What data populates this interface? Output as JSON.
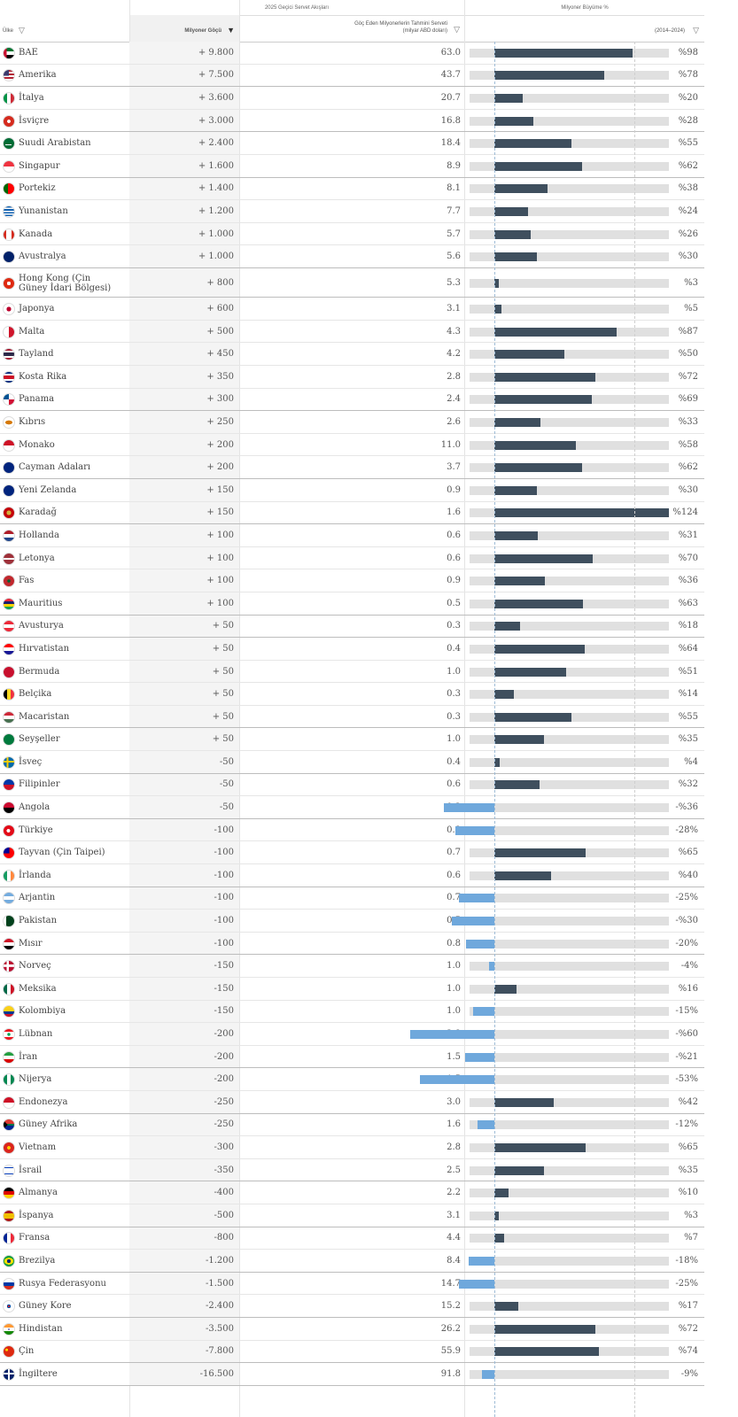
{
  "header": {
    "group1": "2025 Geçici Servet Akışları",
    "group2": "Milyoner Büyüme %",
    "col_country": "Ülke",
    "col_flow": "Milyoner Göçü",
    "col_wealth_l1": "Göç Eden Milyonerlerin Tahmini Serveti",
    "col_wealth_l2": "(milyar ABD doları)",
    "col_growth": "(2014–2024)"
  },
  "colors": {
    "positive": "#3f4f5e",
    "negative": "#6fa8dc",
    "track": "#e0e0e0"
  },
  "chart_data": {
    "type": "table",
    "growth_axis": [
      -125,
      125
    ],
    "rows": [
      {
        "country": "BAE",
        "flow": "+ 9.800",
        "wealth": "63.0",
        "growth": 98,
        "growth_label": "%98",
        "flag": "ae"
      },
      {
        "country": "Amerika",
        "flow": "+ 7.500",
        "wealth": "43.7",
        "growth": 78,
        "growth_label": "%78",
        "flag": "us"
      },
      {
        "country": "İtalya",
        "flow": "+ 3.600",
        "wealth": "20.7",
        "growth": 20,
        "growth_label": "%20",
        "flag": "it"
      },
      {
        "country": "İsviçre",
        "flow": "+ 3.000",
        "wealth": "16.8",
        "growth": 28,
        "growth_label": "%28",
        "flag": "ch"
      },
      {
        "country": "Suudi Arabistan",
        "flow": "+ 2.400",
        "wealth": "18.4",
        "growth": 55,
        "growth_label": "%55",
        "flag": "sa"
      },
      {
        "country": "Singapur",
        "flow": "+ 1.600",
        "wealth": "8.9",
        "growth": 62,
        "growth_label": "%62",
        "flag": "sg"
      },
      {
        "country": "Portekiz",
        "flow": "+ 1.400",
        "wealth": "8.1",
        "growth": 38,
        "growth_label": "%38",
        "flag": "pt"
      },
      {
        "country": "Yunanistan",
        "flow": "+ 1.200",
        "wealth": "7.7",
        "growth": 24,
        "growth_label": "%24",
        "flag": "gr"
      },
      {
        "country": "Kanada",
        "flow": "+ 1.000",
        "wealth": "5.7",
        "growth": 26,
        "growth_label": "%26",
        "flag": "ca"
      },
      {
        "country": "Avustralya",
        "flow": "+ 1.000",
        "wealth": "5.6",
        "growth": 30,
        "growth_label": "%30",
        "flag": "au"
      },
      {
        "country": "Hong Kong (Çin Güney İdari Bölgesi)",
        "flow": "+ 800",
        "wealth": "5.3",
        "growth": 3,
        "growth_label": "%3",
        "flag": "hk"
      },
      {
        "country": "Japonya",
        "flow": "+ 600",
        "wealth": "3.1",
        "growth": 5,
        "growth_label": "%5",
        "flag": "jp"
      },
      {
        "country": "Malta",
        "flow": "+ 500",
        "wealth": "4.3",
        "growth": 87,
        "growth_label": "%87",
        "flag": "mt"
      },
      {
        "country": "Tayland",
        "flow": "+ 450",
        "wealth": "4.2",
        "growth": 50,
        "growth_label": "%50",
        "flag": "th"
      },
      {
        "country": "Kosta Rika",
        "flow": "+ 350",
        "wealth": "2.8",
        "growth": 72,
        "growth_label": "%72",
        "flag": "cr"
      },
      {
        "country": "Panama",
        "flow": "+ 300",
        "wealth": "2.4",
        "growth": 69,
        "growth_label": "%69",
        "flag": "pa"
      },
      {
        "country": "Kıbrıs",
        "flow": "+ 250",
        "wealth": "2.6",
        "growth": 33,
        "growth_label": "%33",
        "flag": "cy"
      },
      {
        "country": "Monako",
        "flow": "+ 200",
        "wealth": "11.0",
        "growth": 58,
        "growth_label": "%58",
        "flag": "mc"
      },
      {
        "country": "Cayman Adaları",
        "flow": "+ 200",
        "wealth": "3.7",
        "growth": 62,
        "growth_label": "%62",
        "flag": "ky"
      },
      {
        "country": "Yeni Zelanda",
        "flow": "+ 150",
        "wealth": "0.9",
        "growth": 30,
        "growth_label": "%30",
        "flag": "nz"
      },
      {
        "country": "Karadağ",
        "flow": "+ 150",
        "wealth": "1.6",
        "growth": 124,
        "growth_label": "%124",
        "flag": "me"
      },
      {
        "country": "Hollanda",
        "flow": "+ 100",
        "wealth": "0.6",
        "growth": 31,
        "growth_label": "%31",
        "flag": "nl"
      },
      {
        "country": "Letonya",
        "flow": "+ 100",
        "wealth": "0.6",
        "growth": 70,
        "growth_label": "%70",
        "flag": "lv"
      },
      {
        "country": "Fas",
        "flow": "+ 100",
        "wealth": "0.9",
        "growth": 36,
        "growth_label": "%36",
        "flag": "ma"
      },
      {
        "country": "Mauritius",
        "flow": "+ 100",
        "wealth": "0.5",
        "growth": 63,
        "growth_label": "%63",
        "flag": "mu"
      },
      {
        "country": "Avusturya",
        "flow": "+ 50",
        "wealth": "0.3",
        "growth": 18,
        "growth_label": "%18",
        "flag": "at"
      },
      {
        "country": "Hırvatistan",
        "flow": "+ 50",
        "wealth": "0.4",
        "growth": 64,
        "growth_label": "%64",
        "flag": "hr"
      },
      {
        "country": "Bermuda",
        "flow": "+ 50",
        "wealth": "1.0",
        "growth": 51,
        "growth_label": "%51",
        "flag": "bm"
      },
      {
        "country": "Belçika",
        "flow": "+ 50",
        "wealth": "0.3",
        "growth": 14,
        "growth_label": "%14",
        "flag": "be"
      },
      {
        "country": "Macaristan",
        "flow": "+ 50",
        "wealth": "0.3",
        "growth": 55,
        "growth_label": "%55",
        "flag": "hu"
      },
      {
        "country": "Seyşeller",
        "flow": "+ 50",
        "wealth": "1.0",
        "growth": 35,
        "growth_label": "%35",
        "flag": "sc"
      },
      {
        "country": "İsveç",
        "flow": "-50",
        "wealth": "0.4",
        "growth": 4,
        "growth_label": "%4",
        "flag": "se"
      },
      {
        "country": "Filipinler",
        "flow": "-50",
        "wealth": "0.6",
        "growth": 32,
        "growth_label": "%32",
        "flag": "ph"
      },
      {
        "country": "Angola",
        "flow": "-50",
        "wealth": "0.3",
        "growth": -36,
        "growth_label": "-%36",
        "flag": "ao"
      },
      {
        "country": "Türkiye",
        "flow": "-100",
        "wealth": "0.8",
        "growth": -28,
        "growth_label": "-28%",
        "flag": "tr"
      },
      {
        "country": "Tayvan (Çin Taipei)",
        "flow": "-100",
        "wealth": "0.7",
        "growth": 65,
        "growth_label": "%65",
        "flag": "tw"
      },
      {
        "country": "İrlanda",
        "flow": "-100",
        "wealth": "0.6",
        "growth": 40,
        "growth_label": "%40",
        "flag": "ie"
      },
      {
        "country": "Arjantin",
        "flow": "-100",
        "wealth": "0.7",
        "growth": -25,
        "growth_label": "-25%",
        "flag": "ar"
      },
      {
        "country": "Pakistan",
        "flow": "-100",
        "wealth": "0.5",
        "growth": -30,
        "growth_label": "-%30",
        "flag": "pk"
      },
      {
        "country": "Mısır",
        "flow": "-100",
        "wealth": "0.8",
        "growth": -20,
        "growth_label": "-20%",
        "flag": "eg"
      },
      {
        "country": "Norveç",
        "flow": "-150",
        "wealth": "1.0",
        "growth": -4,
        "growth_label": "-4%",
        "flag": "no"
      },
      {
        "country": "Meksika",
        "flow": "-150",
        "wealth": "1.0",
        "growth": 16,
        "growth_label": "%16",
        "flag": "mx"
      },
      {
        "country": "Kolombiya",
        "flow": "-150",
        "wealth": "1.0",
        "growth": -15,
        "growth_label": "-15%",
        "flag": "co"
      },
      {
        "country": "Lübnan",
        "flow": "-200",
        "wealth": "2.8",
        "growth": -60,
        "growth_label": "-%60",
        "flag": "lb"
      },
      {
        "country": "İran",
        "flow": "-200",
        "wealth": "1.5",
        "growth": -21,
        "growth_label": "-%21",
        "flag": "ir"
      },
      {
        "country": "Nijerya",
        "flow": "-200",
        "wealth": "1.5",
        "growth": -53,
        "growth_label": "-53%",
        "flag": "ng"
      },
      {
        "country": "Endonezya",
        "flow": "-250",
        "wealth": "3.0",
        "growth": 42,
        "growth_label": "%42",
        "flag": "id"
      },
      {
        "country": "Güney Afrika",
        "flow": "-250",
        "wealth": "1.6",
        "growth": -12,
        "growth_label": "-12%",
        "flag": "za"
      },
      {
        "country": "Vietnam",
        "flow": "-300",
        "wealth": "2.8",
        "growth": 65,
        "growth_label": "%65",
        "flag": "vn"
      },
      {
        "country": "İsrail",
        "flow": "-350",
        "wealth": "2.5",
        "growth": 35,
        "growth_label": "%35",
        "flag": "il"
      },
      {
        "country": "Almanya",
        "flow": "-400",
        "wealth": "2.2",
        "growth": 10,
        "growth_label": "%10",
        "flag": "de"
      },
      {
        "country": "İspanya",
        "flow": "-500",
        "wealth": "3.1",
        "growth": 3,
        "growth_label": "%3",
        "flag": "es"
      },
      {
        "country": "Fransa",
        "flow": "-800",
        "wealth": "4.4",
        "growth": 7,
        "growth_label": "%7",
        "flag": "fr"
      },
      {
        "country": "Brezilya",
        "flow": "-1.200",
        "wealth": "8.4",
        "growth": -18,
        "growth_label": "-18%",
        "flag": "br"
      },
      {
        "country": "Rusya Federasyonu",
        "flow": "-1.500",
        "wealth": "14.7",
        "growth": -25,
        "growth_label": "-25%",
        "flag": "ru"
      },
      {
        "country": "Güney Kore",
        "flow": "-2.400",
        "wealth": "15.2",
        "growth": 17,
        "growth_label": "%17",
        "flag": "kr"
      },
      {
        "country": "Hindistan",
        "flow": "-3.500",
        "wealth": "26.2",
        "growth": 72,
        "growth_label": "%72",
        "flag": "in"
      },
      {
        "country": "Çin",
        "flow": "-7.800",
        "wealth": "55.9",
        "growth": 74,
        "growth_label": "%74",
        "flag": "cn"
      },
      {
        "country": "İngiltere",
        "flow": "-16.500",
        "wealth": "91.8",
        "growth": -9,
        "growth_label": "-9%",
        "flag": "gb"
      }
    ]
  }
}
